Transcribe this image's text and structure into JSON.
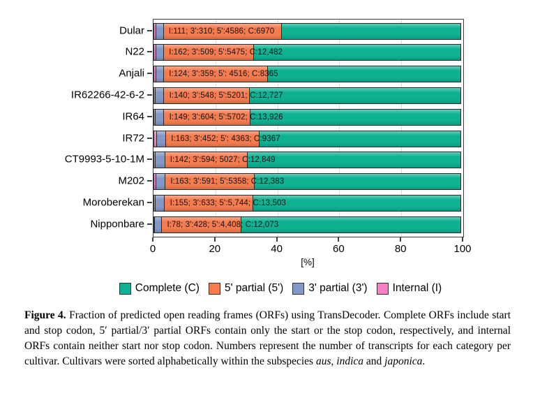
{
  "chart_data": {
    "type": "bar",
    "orientation": "horizontal",
    "stacked": true,
    "title": "",
    "xlabel": "[%]",
    "xlim": [
      0,
      100
    ],
    "xticks": [
      0,
      20,
      40,
      60,
      80,
      100
    ],
    "grid": "light-vertical",
    "legend_position": "bottom",
    "segments_left_to_right": [
      {
        "key": "internal",
        "name": "Internal (I)",
        "color": "#f87fc4"
      },
      {
        "key": "partial3",
        "name": "3' partial (3')",
        "color": "#8398c6"
      },
      {
        "key": "partial5",
        "name": "5' partial (5')",
        "color": "#f67c50"
      },
      {
        "key": "complete",
        "name": "Complete (C)",
        "color": "#0eb293"
      }
    ],
    "legend": [
      {
        "label": "Complete (C)",
        "color": "#0eb293"
      },
      {
        "label": "5' partial (5')",
        "color": "#f67c50"
      },
      {
        "label": "3' partial (3')",
        "color": "#8398c6"
      },
      {
        "label": "Internal (I)",
        "color": "#f87fc4"
      }
    ],
    "categories": [
      "Dular",
      "N22",
      "Anjali",
      "IR62266-42-6-2",
      "IR64",
      "IR72",
      "CT9993-5-10-1M",
      "M202",
      "Moroberekan",
      "Nipponbare"
    ],
    "bars": [
      {
        "category": "Dular",
        "values": {
          "internal": 111,
          "partial3": 310,
          "partial5": 4586,
          "complete": 6970
        },
        "label": "I:111; 3':310; 5':4586; C:6970"
      },
      {
        "category": "N22",
        "values": {
          "internal": 162,
          "partial3": 509,
          "partial5": 5475,
          "complete": 12482
        },
        "label": "I:162; 3':509; 5':5475; C:12,482"
      },
      {
        "category": "Anjali",
        "values": {
          "internal": 124,
          "partial3": 359,
          "partial5": 4516,
          "complete": 8365
        },
        "label": "I:124; 3':359; 5': 4516; C:8365"
      },
      {
        "category": "IR62266-42-6-2",
        "values": {
          "internal": 140,
          "partial3": 548,
          "partial5": 5201,
          "complete": 12727
        },
        "label": "I:140; 3':548; 5':5201; C:12,727"
      },
      {
        "category": "IR64",
        "values": {
          "internal": 149,
          "partial3": 604,
          "partial5": 5702,
          "complete": 13926
        },
        "label": "I:149; 3':604; 5':5702; C:13,926"
      },
      {
        "category": "IR72",
        "values": {
          "internal": 163,
          "partial3": 452,
          "partial5": 4363,
          "complete": 9367
        },
        "label": "I:163; 3':452; 5': 4363; C:9367"
      },
      {
        "category": "CT9993-5-10-1M",
        "values": {
          "internal": 142,
          "partial3": 594,
          "partial5": 5027,
          "complete": 12849
        },
        "label": "I:142; 3':594; 5027; C:12,849"
      },
      {
        "category": "M202",
        "values": {
          "internal": 163,
          "partial3": 591,
          "partial5": 5358,
          "complete": 12383
        },
        "label": "I:163; 3':591; 5':5358; C:12,383"
      },
      {
        "category": "Moroberekan",
        "values": {
          "internal": 155,
          "partial3": 633,
          "partial5": 5744,
          "complete": 13503
        },
        "label": "I:155; 3':633; 5':5,744; C:13,503"
      },
      {
        "category": "Nipponbare",
        "values": {
          "internal": 78,
          "partial3": 428,
          "partial5": 4408,
          "complete": 12073
        },
        "label": "I:78; 3':428; 5':4,408; C:12,073"
      }
    ]
  },
  "caption": {
    "tag": "Figure 4.",
    "body": " Fraction of predicted open reading frames (ORFs) using TransDecoder. Complete ORFs include start and stop codon, 5′ partial/3′ partial ORFs contain only the start or the stop codon, respectively, and internal ORFs contain neither start nor stop codon. Numbers represent the number of transcripts for each category per cultivar. Cultivars were sorted alphabetically within the subspecies ",
    "species1": "aus",
    "sep1": ", ",
    "species2": "indica",
    "sep2": " and ",
    "species3": "japonica",
    "period": "."
  }
}
